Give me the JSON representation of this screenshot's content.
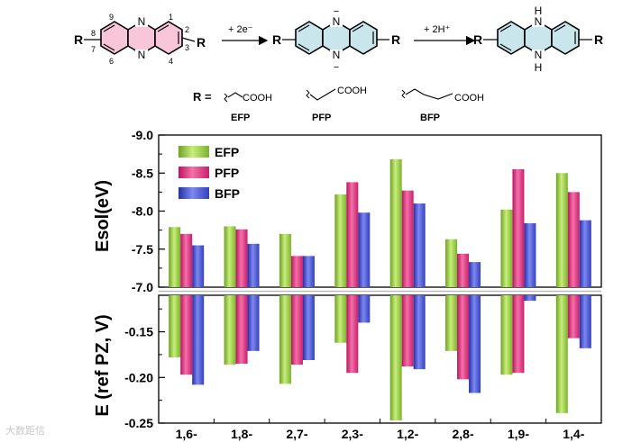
{
  "scheme": {
    "R_label": "R",
    "N_label": "N",
    "H_label": "H",
    "minus": "−",
    "ring_numbers": [
      "9",
      "1",
      "8",
      "2",
      "7",
      "3",
      "6",
      "4"
    ],
    "arrow1_label": "+ 2e⁻",
    "arrow2_label": "+ 2H⁺",
    "r_eq": "R =",
    "substituents": [
      {
        "formula": "COOH",
        "name": "EFP"
      },
      {
        "formula": "COOH",
        "name": "PFP"
      },
      {
        "formula": "COOH",
        "name": "BFP"
      }
    ],
    "colors": {
      "ring_pink": "#f9c6d9",
      "ring_blue": "#c8e6ec"
    }
  },
  "chart_data": [
    {
      "type": "bar",
      "ylabel": "Esol(eV)",
      "ylim": [
        -7.0,
        -9.0
      ],
      "yticks": [
        "-9.0",
        "-8.5",
        "-8.0",
        "-7.5",
        "-7.0"
      ],
      "categories": [
        "1,6-",
        "1,8-",
        "2,7-",
        "2,3-",
        "1,2-",
        "2,8-",
        "1,9-",
        "1,4-"
      ],
      "series": [
        {
          "name": "EFP",
          "color": "#9dd04a",
          "values": [
            -7.79,
            -7.8,
            -7.7,
            -8.22,
            -8.68,
            -7.63,
            -8.02,
            -8.5
          ]
        },
        {
          "name": "PFP",
          "color": "#e8388c",
          "values": [
            -7.7,
            -7.76,
            -7.41,
            -8.38,
            -8.27,
            -7.44,
            -8.55,
            -8.25
          ]
        },
        {
          "name": "BFP",
          "color": "#4a58d8",
          "values": [
            -7.55,
            -7.57,
            -7.41,
            -7.98,
            -8.1,
            -7.33,
            -7.84,
            -7.88
          ]
        }
      ],
      "legend": "top-left"
    },
    {
      "type": "bar",
      "ylabel": "E (ref PZ, V)",
      "ylim": [
        -0.25,
        -0.11
      ],
      "yticks": [
        "-0.15",
        "-0.20",
        "-0.25"
      ],
      "categories": [
        "1,6-",
        "1,8-",
        "2,7-",
        "2,3-",
        "1,2-",
        "2,8-",
        "1,9-",
        "1,4-"
      ],
      "series": [
        {
          "name": "EFP",
          "color": "#9dd04a",
          "values": [
            -0.178,
            -0.186,
            -0.207,
            -0.162,
            -0.247,
            -0.171,
            -0.197,
            -0.239
          ]
        },
        {
          "name": "PFP",
          "color": "#e8388c",
          "values": [
            -0.197,
            -0.185,
            -0.186,
            -0.195,
            -0.188,
            -0.202,
            -0.195,
            -0.157
          ]
        },
        {
          "name": "BFP",
          "color": "#4a58d8",
          "values": [
            -0.208,
            -0.171,
            -0.181,
            -0.14,
            -0.191,
            -0.217,
            -0.116,
            -0.168
          ]
        }
      ]
    }
  ],
  "watermark": "大数距信"
}
